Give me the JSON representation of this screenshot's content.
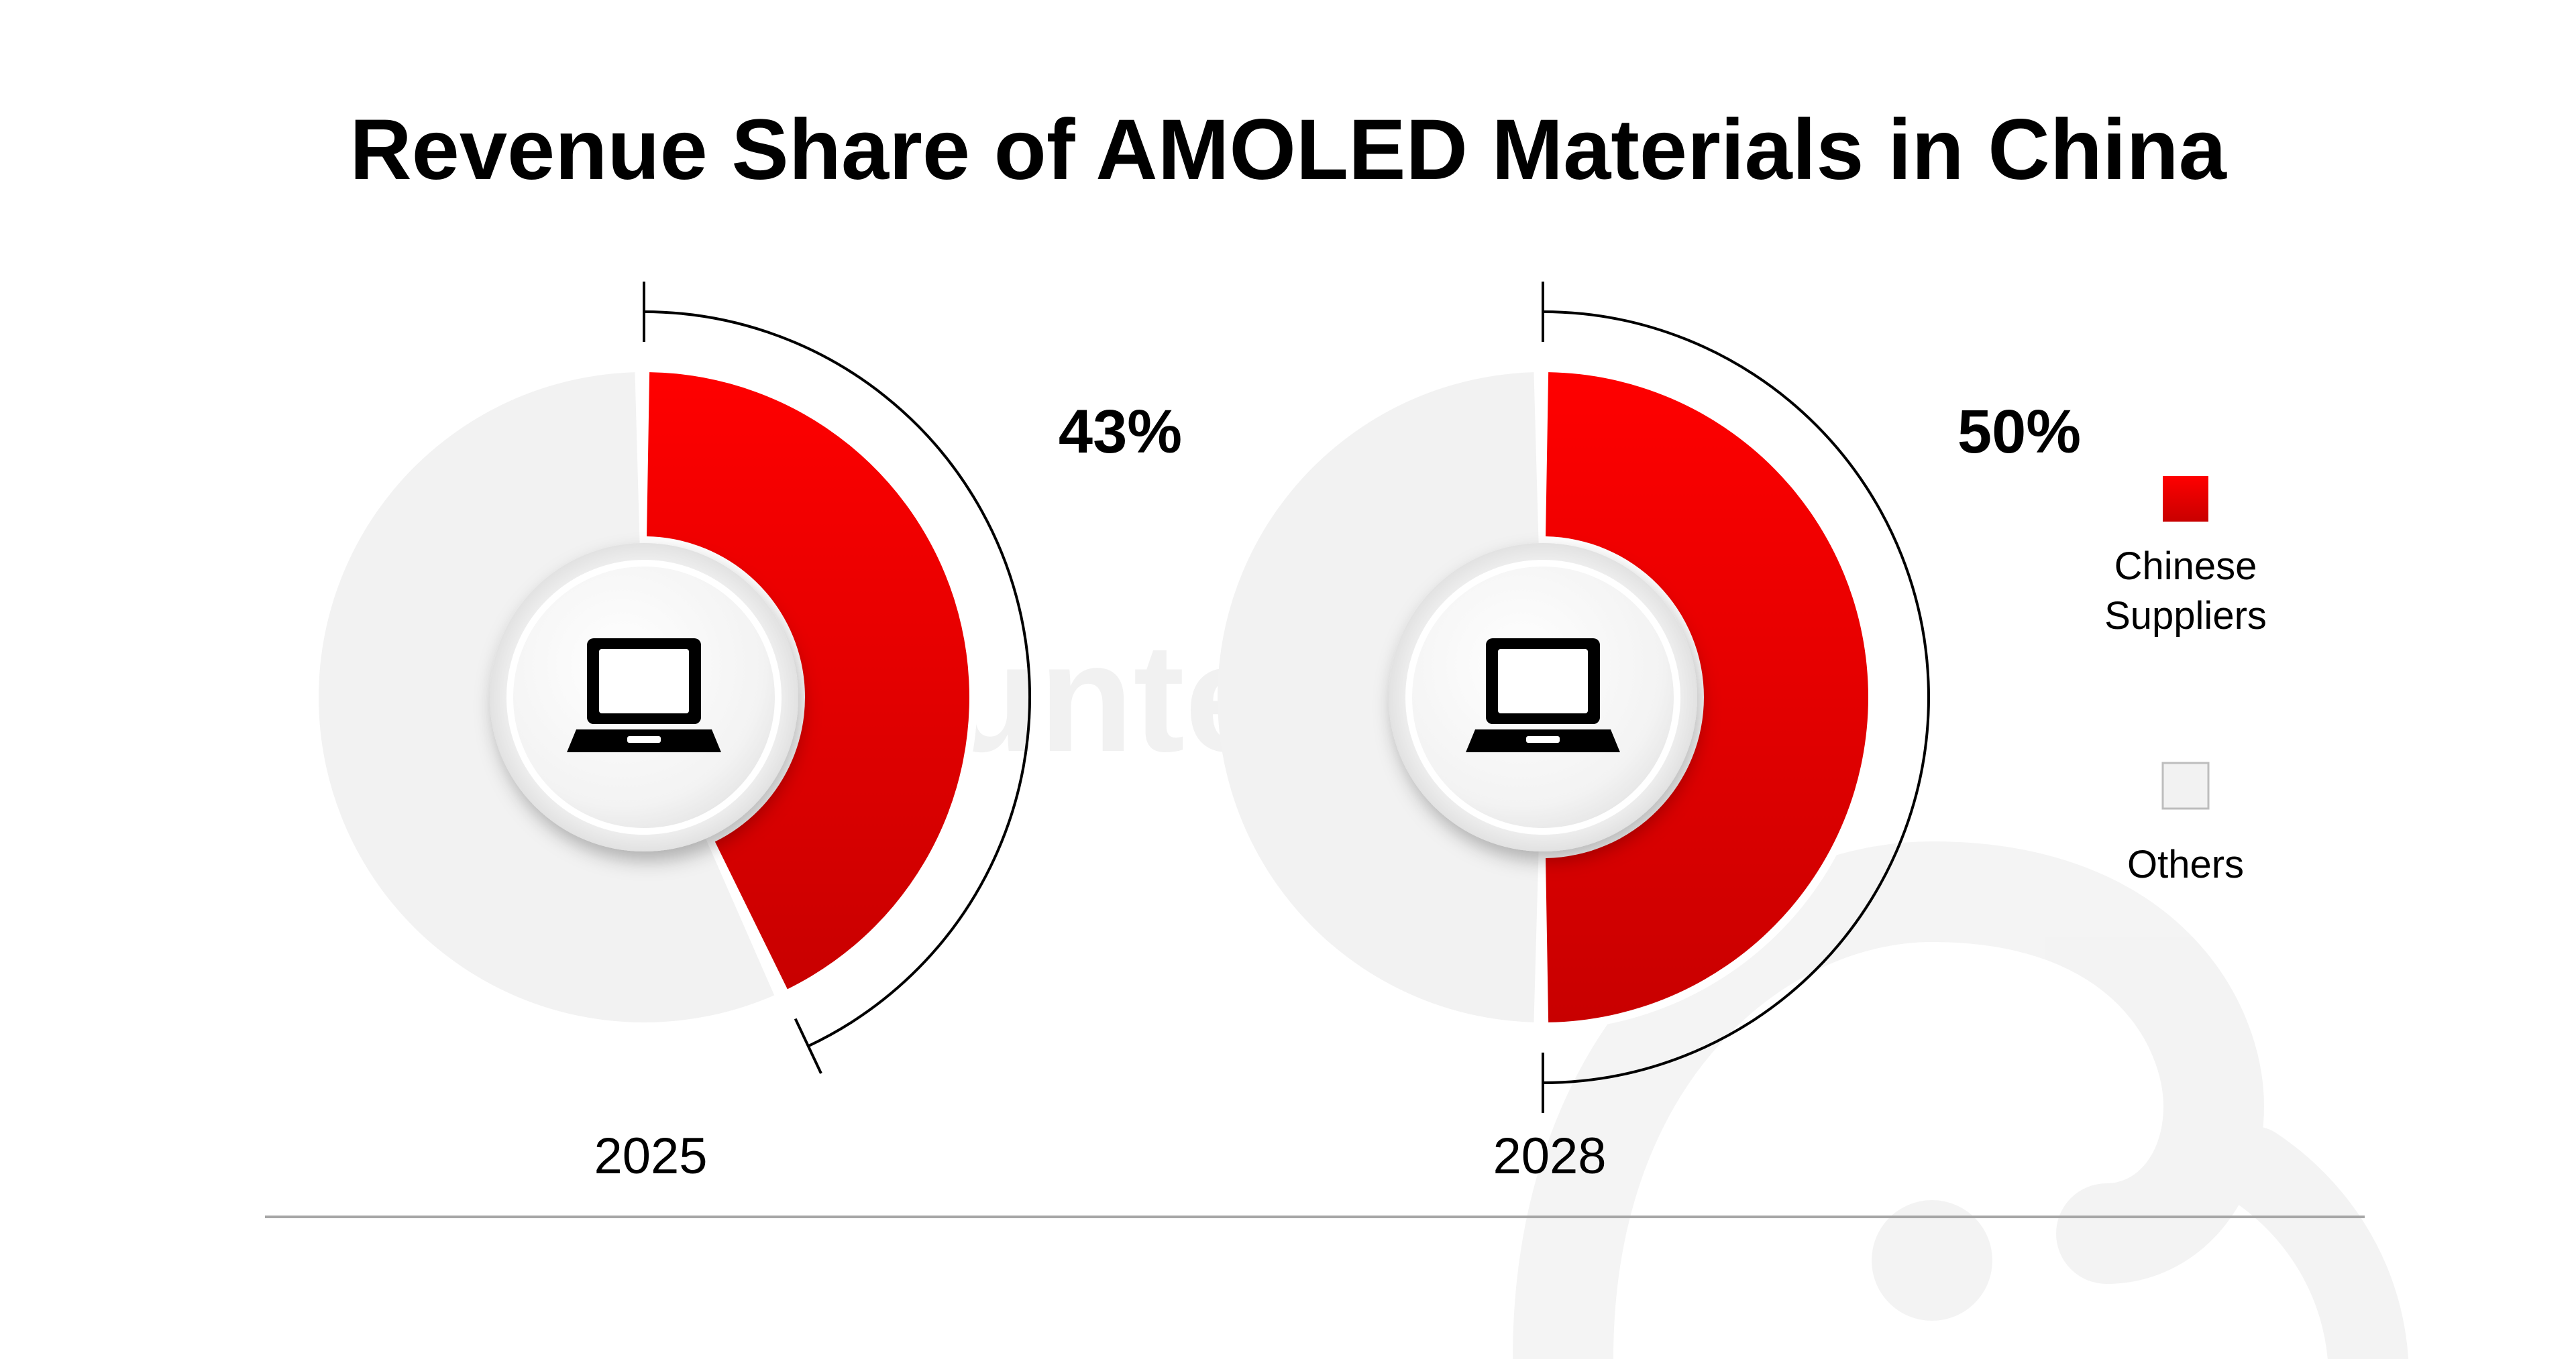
{
  "title": "Revenue Share of AMOLED Materials in China",
  "watermark": "counterpoint",
  "colors": {
    "chinese_suppliers": "#e60000",
    "chinese_suppliers_light": "#ff0000",
    "chinese_suppliers_dark": "#c80000",
    "others": "#f2f2f2",
    "axis_line": "#000000",
    "divider": "#a6a6a6"
  },
  "legend": {
    "items": [
      {
        "label": "Chinese Suppliers",
        "color": "#e60000"
      },
      {
        "label": "Others",
        "color": "#f2f2f2"
      }
    ]
  },
  "center_icon": "laptop-icon",
  "chart_data": {
    "type": "pie",
    "series": [
      {
        "name": "Chinese Suppliers",
        "values": [
          43,
          50
        ]
      },
      {
        "name": "Others",
        "values": [
          57,
          50
        ]
      }
    ],
    "categories": [
      "2025",
      "2028"
    ],
    "data_labels": [
      "43%",
      "50%"
    ],
    "legend_placement": "right"
  }
}
